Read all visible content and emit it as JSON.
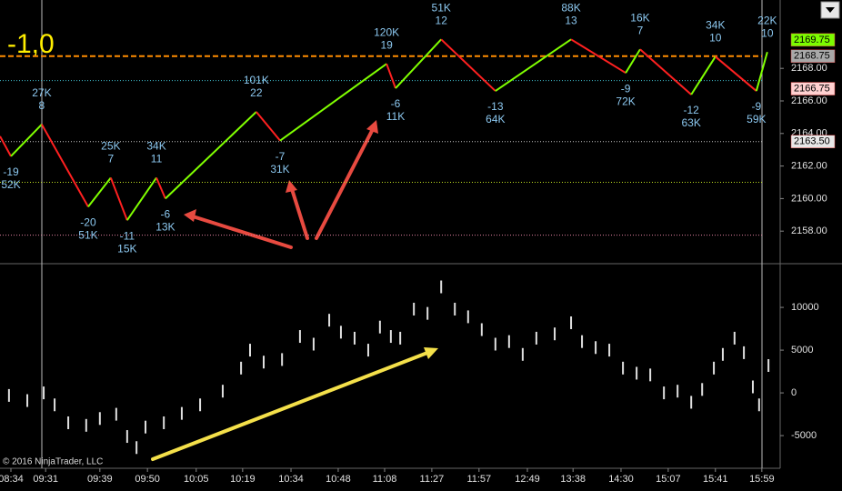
{
  "chart_data": [
    {
      "type": "line",
      "annotation": "-1,0",
      "xlim": [
        0,
        200
      ],
      "ylim": [
        2156,
        2172.2
      ],
      "yticks": [
        {
          "value": 2158,
          "label": "2158.00"
        },
        {
          "value": 2160,
          "label": "2160.00"
        },
        {
          "value": 2162,
          "label": "2162.00"
        },
        {
          "value": 2164,
          "label": "2164.00"
        },
        {
          "value": 2166,
          "label": "2166.00"
        },
        {
          "value": 2168,
          "label": "2168.00"
        }
      ],
      "up_color": "#80ff00",
      "down_color": "#ff2020",
      "label_color": "#8cc8f0",
      "x": [
        0,
        2.8,
        10.7,
        22.6,
        28.4,
        32.6,
        40.1,
        42.4,
        65.7,
        71.8,
        99.1,
        101.4,
        113.1,
        127.0,
        146.4,
        160.4,
        164.1,
        177.2,
        183.4,
        193.9,
        196.7
      ],
      "values": [
        2163.83,
        2162.6,
        2164.56,
        2159.5,
        2161.28,
        2158.67,
        2161.28,
        2160.0,
        2165.33,
        2163.56,
        2168.28,
        2166.78,
        2169.78,
        2166.61,
        2169.78,
        2167.72,
        2169.17,
        2166.39,
        2168.72,
        2166.61,
        2169.0
      ],
      "swing_labels": [
        null,
        [
          "-19",
          "52K"
        ],
        [
          "27K",
          "8"
        ],
        [
          "-20",
          "51K"
        ],
        [
          "25K",
          "7"
        ],
        [
          "-11",
          "15K"
        ],
        [
          "34K",
          "11"
        ],
        [
          "-6",
          "13K"
        ],
        [
          "101K",
          "22"
        ],
        [
          "-7",
          "31K"
        ],
        [
          "120K",
          "19"
        ],
        [
          "-6",
          "11K"
        ],
        [
          "51K",
          "12"
        ],
        [
          "-13",
          "64K"
        ],
        [
          "88K",
          "13"
        ],
        [
          "-9",
          "72K"
        ],
        [
          "16K",
          "7"
        ],
        [
          "-12",
          "63K"
        ],
        [
          "34K",
          "10"
        ],
        [
          "-9",
          "59K"
        ],
        [
          "22K",
          "10"
        ]
      ],
      "levels": [
        {
          "value": 2168.75,
          "color": "#ff8c00",
          "style": "dashed"
        },
        {
          "value": 2167.25,
          "color": "#40c0d0",
          "style": "dotted"
        },
        {
          "value": 2163.5,
          "color": "#c8c8c8",
          "style": "dotted"
        },
        {
          "value": 2161.0,
          "color": "#c0e020",
          "style": "dotted"
        },
        {
          "value": 2157.75,
          "color": "#e080a0",
          "style": "dotted"
        }
      ],
      "markers": [
        {
          "value": 2169.75,
          "label": "2169.75",
          "color": "#7cfc00"
        },
        {
          "value": 2168.75,
          "label": "2168.75",
          "color": "#a8a8a8"
        },
        {
          "value": 2166.75,
          "label": "2166.75",
          "color": "#ffd0d0"
        },
        {
          "value": 2163.5,
          "label": "2163.50",
          "color": "#e8e8e8"
        }
      ]
    },
    {
      "type": "scatter",
      "copyright": "© 2016 NinjaTrader, LLC",
      "xlim": [
        0,
        200
      ],
      "ylim": [
        -8500,
        14900
      ],
      "yticks": [
        10000,
        5000,
        0,
        -5000
      ],
      "xticks": [
        {
          "value": 2.8,
          "label": "08:34"
        },
        {
          "value": 11.7,
          "label": "09:31"
        },
        {
          "value": 25.6,
          "label": "09:39"
        },
        {
          "value": 37.8,
          "label": "09:50"
        },
        {
          "value": 50.3,
          "label": "10:05"
        },
        {
          "value": 62.2,
          "label": "10:19"
        },
        {
          "value": 74.6,
          "label": "10:34"
        },
        {
          "value": 86.7,
          "label": "10:48"
        },
        {
          "value": 98.6,
          "label": "11:08"
        },
        {
          "value": 110.7,
          "label": "11:27"
        },
        {
          "value": 122.8,
          "label": "11:57"
        },
        {
          "value": 135.2,
          "label": "12:49"
        },
        {
          "value": 146.9,
          "label": "13:38"
        },
        {
          "value": 159.2,
          "label": "14:30"
        },
        {
          "value": 171.3,
          "label": "15:07"
        },
        {
          "value": 183.4,
          "label": "15:41"
        },
        {
          "value": 195.3,
          "label": "15:59"
        }
      ],
      "color": "#e0e0e0",
      "x": [
        2.3,
        7.0,
        11.2,
        14.0,
        17.5,
        22.1,
        25.6,
        29.8,
        32.6,
        35.0,
        37.3,
        42.0,
        46.6,
        51.3,
        57.1,
        61.8,
        64.1,
        67.6,
        72.3,
        76.9,
        80.4,
        84.4,
        87.4,
        90.9,
        94.4,
        97.4,
        100.2,
        102.6,
        106.1,
        109.6,
        113.1,
        116.6,
        120.0,
        123.5,
        127.0,
        130.5,
        134.0,
        137.5,
        142.2,
        146.4,
        149.2,
        152.7,
        156.2,
        159.7,
        163.2,
        166.7,
        170.2,
        173.7,
        177.2,
        180.0,
        183.0,
        185.3,
        188.3,
        190.7,
        193.0,
        194.6,
        197.0
      ],
      "values": [
        -300,
        -900,
        0,
        -1400,
        -3500,
        -3800,
        -3000,
        -2500,
        -5100,
        -6400,
        -4000,
        -3500,
        -2400,
        -1400,
        200,
        2900,
        5000,
        3600,
        3900,
        6600,
        5700,
        8500,
        7100,
        6400,
        5000,
        7700,
        6600,
        6400,
        9800,
        9300,
        12400,
        9800,
        8900,
        7400,
        5700,
        6000,
        4500,
        6400,
        6900,
        8200,
        6000,
        5300,
        5000,
        2900,
        2300,
        2100,
        0,
        200,
        -1100,
        400,
        2900,
        4500,
        6400,
        4700,
        700,
        -1400,
        3200
      ]
    }
  ]
}
